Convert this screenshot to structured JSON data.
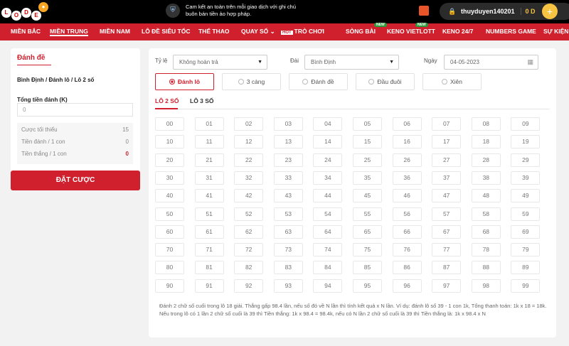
{
  "header": {
    "logo_letters": [
      "L",
      "O",
      "D",
      "E"
    ],
    "notice": "Cam kết an toàn trên mỗi giao dịch với ghi chú buôn bán tiền ảo hợp pháp.",
    "username": "thuyduyen140201",
    "balance": "0 D",
    "add_label": "+"
  },
  "nav": [
    {
      "label": "MIỀN BẮC"
    },
    {
      "label": "MIỀN TRUNG"
    },
    {
      "label": "MIỀN NAM"
    },
    {
      "label": "LÔ ĐỀ SIÊU TỐC"
    },
    {
      "label": "THỂ THAO"
    },
    {
      "label": "QUAY SỐ ⌄"
    },
    {
      "label": "TRÒ CHƠI",
      "badge": "HOT"
    },
    {
      "label": "SÒNG BÀI",
      "badge": "NEW"
    },
    {
      "label": "KENO VIETLOTT",
      "badge": "NEW"
    },
    {
      "label": "KENO 24/7"
    },
    {
      "label": "NUMBERS GAME"
    },
    {
      "label": "SỰ KIỆN"
    }
  ],
  "left": {
    "title": "Đánh đề",
    "breadcrumb": "Bình Định / Đánh lô / Lô 2 số",
    "total_label": "Tổng tiền đánh (K)",
    "total_placeholder": "0",
    "stats": [
      {
        "label": "Cược tối thiểu",
        "value": "15"
      },
      {
        "label": "Tiền đánh / 1 con",
        "value": "0"
      },
      {
        "label": "Tiền thắng / 1 con",
        "value": "0"
      }
    ],
    "submit": "ĐẶT CƯỢC"
  },
  "filters": {
    "rate_label": "Tỷ lệ",
    "rate_value": "Không hoàn trả",
    "station_label": "Đài",
    "station_value": "Bình Định",
    "date_label": "Ngày",
    "date_value": "04-05-2023"
  },
  "options": [
    {
      "label": "Đánh lô",
      "selected": true
    },
    {
      "label": "3 càng"
    },
    {
      "label": "Đánh đề"
    },
    {
      "label": "Đầu đuôi"
    },
    {
      "label": "Xiên"
    }
  ],
  "tabs": [
    {
      "label": "LÔ 2 SỐ",
      "active": true
    },
    {
      "label": "LÔ 3 SỐ"
    }
  ],
  "numbers": [],
  "description": "Đánh 2 chữ số cuối trong lô 18 giải. Thắng gấp 98.4 lần, nếu số đó về N lần thì tính kết quả x N lần. Ví dụ: đánh lô số 39 - 1 con 1k, Tổng thanh toán: 1k x 18 = 18k. Nếu trong lô có 1 lần 2 chữ số cuối là 39 thì Tiền thắng: 1k x 98.4 = 98.4k, nếu có N lần 2 chữ số cuối là 39 thì Tiền thắng là: 1k x 98.4 x N",
  "colors": {
    "brand": "#d0202d",
    "accent": "#f6c343"
  }
}
